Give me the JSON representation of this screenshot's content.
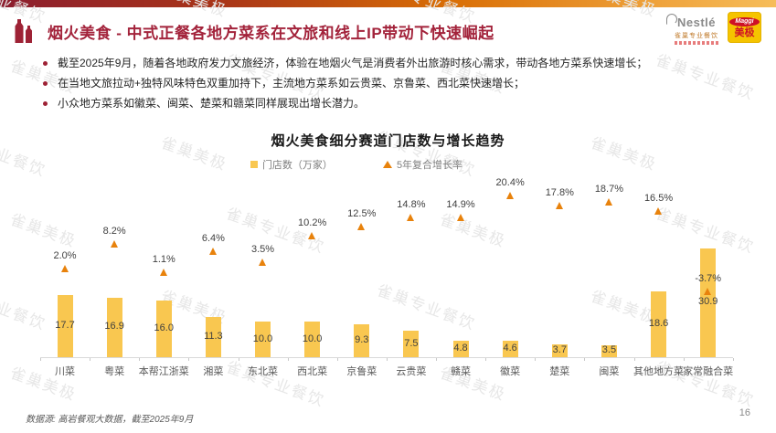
{
  "header": {
    "title": "烟火美食 - 中式正餐各地方菜系在文旅和线上IP带动下快速崛起",
    "nestle_wordmark": "Nestlé",
    "nestle_sub": "雀巢专业餐饮",
    "maggi_wordmark": "Maggi",
    "maggi_sub": "美极"
  },
  "bullets": [
    "截至2025年9月，随着各地政府发力文旅经济，体验在地烟火气是消费者外出旅游时核心需求，带动各地方菜系快速增长；",
    "在当地文旅拉动+独特风味特色双重加持下，主流地方菜系如云贵菜、京鲁菜、西北菜快速增长；",
    "小众地方菜系如徽菜、闽菜、楚菜和赣菜同样展现出增长潜力。"
  ],
  "chart_data": {
    "type": "bar",
    "title": "烟火美食细分赛道门店数与增长趋势",
    "legend": [
      "门店数（万家）",
      "5年复合增长率"
    ],
    "legend_position": "top-center",
    "categories": [
      "川菜",
      "粤菜",
      "本帮江浙菜",
      "湘菜",
      "东北菜",
      "西北菜",
      "京鲁菜",
      "云贵菜",
      "赣菜",
      "徽菜",
      "楚菜",
      "闽菜",
      "其他地方菜",
      "家常融合菜"
    ],
    "series": [
      {
        "name": "门店数（万家）",
        "type": "bar",
        "values": [
          17.7,
          16.9,
          16.0,
          11.3,
          10.0,
          10.0,
          9.3,
          7.5,
          4.8,
          4.6,
          3.7,
          3.5,
          18.6,
          30.9
        ]
      },
      {
        "name": "5年复合增长率",
        "type": "scatter-triangle",
        "unit": "%",
        "values": [
          2.0,
          8.2,
          1.1,
          6.4,
          3.5,
          10.2,
          12.5,
          14.8,
          14.9,
          20.4,
          17.8,
          18.7,
          16.5,
          -3.7
        ]
      }
    ],
    "ylim_left": [
      0,
      32
    ],
    "ylim_right": [
      -5,
      22
    ],
    "grid": false,
    "colors": {
      "bar": "#F9C750",
      "cagr_triangle": "#E8820C"
    }
  },
  "footer": {
    "source": "数据源: 高岩餐观大数据，截至2025年9月",
    "page": "16"
  },
  "watermark": {
    "text_primary": "雀巢专业餐饮",
    "text_secondary": "雀巢美极"
  },
  "colors": {
    "header_title": "#A3233B",
    "topbar_gradient_start": "#8C1E2F",
    "topbar_gradient_end": "#F6BD5A",
    "bar": "#F9C750",
    "triangle": "#E8820C"
  }
}
